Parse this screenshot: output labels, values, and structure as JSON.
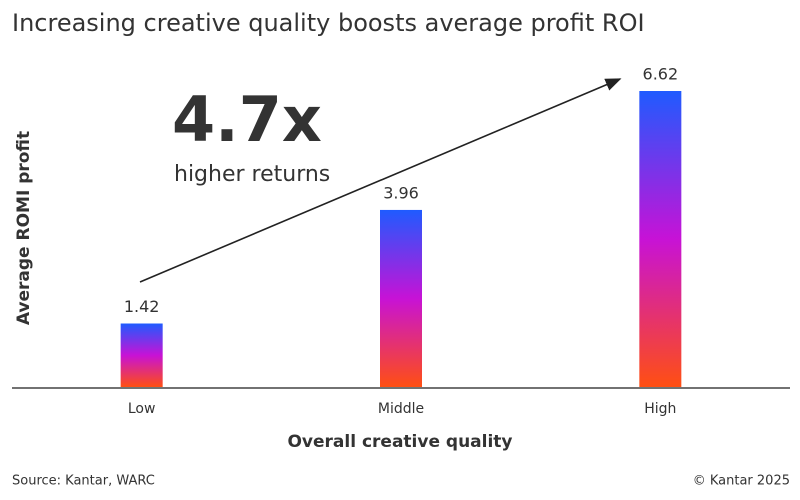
{
  "chart_data": {
    "type": "bar",
    "title": "Increasing creative quality boosts average profit ROI",
    "y_label": "Average ROMI profit",
    "x_label": "Overall creative quality",
    "categories": [
      "Low",
      "Middle",
      "High"
    ],
    "values": [
      1.42,
      3.96,
      6.62
    ],
    "gradient": [
      "#1f5bff",
      "#c712d6",
      "#ff4f12"
    ],
    "annotations": [
      "4.7x",
      "higher returns"
    ],
    "source": "Source: Kantar, WARC",
    "copyright": "© Kantar 2025"
  }
}
